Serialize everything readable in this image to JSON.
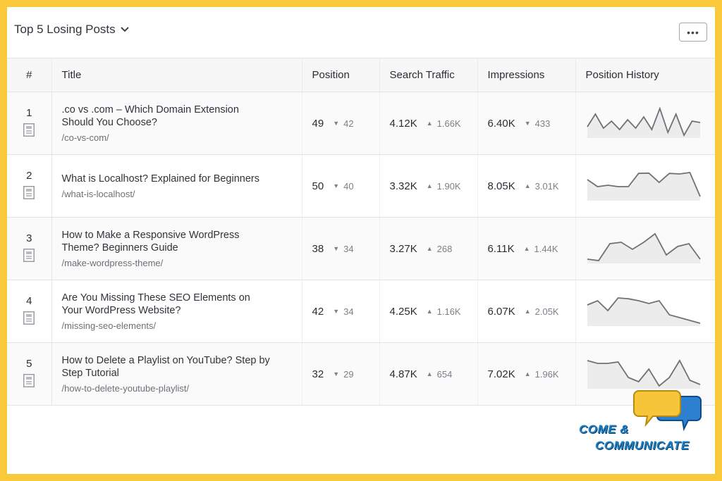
{
  "header": {
    "title": "Top 5 Losing Posts",
    "more_label": "•••"
  },
  "columns": {
    "num": "#",
    "title": "Title",
    "position": "Position",
    "traffic": "Search Traffic",
    "impressions": "Impressions",
    "history": "Position History"
  },
  "rows": [
    {
      "num": "1",
      "title": ".co vs .com – Which Domain Extension Should You Choose?",
      "url": "/co-vs-com/",
      "position": "49",
      "position_dir": "▼",
      "position_delta": "42",
      "traffic": "4.12K",
      "traffic_dir": "▲",
      "traffic_delta": "1.66K",
      "impressions": "6.40K",
      "impressions_dir": "▼",
      "impressions_delta": "433",
      "history": [
        0.35,
        0.8,
        0.3,
        0.55,
        0.25,
        0.6,
        0.3,
        0.7,
        0.25,
        1.0,
        0.15,
        0.8,
        0.05,
        0.55,
        0.5
      ]
    },
    {
      "num": "2",
      "title": "What is Localhost? Explained for Beginners",
      "url": "/what-is-localhost/",
      "position": "50",
      "position_dir": "▼",
      "position_delta": "40",
      "traffic": "3.32K",
      "traffic_dir": "▲",
      "traffic_delta": "1.90K",
      "impressions": "8.05K",
      "impressions_dir": "▲",
      "impressions_delta": "3.01K",
      "history": [
        0.7,
        0.45,
        0.5,
        0.45,
        0.45,
        0.92,
        0.93,
        0.6,
        0.92,
        0.9,
        0.95,
        0.1
      ]
    },
    {
      "num": "3",
      "title": "How to Make a Responsive WordPress Theme? Beginners Guide",
      "url": "/make-wordpress-theme/",
      "position": "38",
      "position_dir": "▼",
      "position_delta": "34",
      "traffic": "3.27K",
      "traffic_dir": "▲",
      "traffic_delta": "268",
      "impressions": "6.11K",
      "impressions_dir": "▲",
      "impressions_delta": "1.44K",
      "history": [
        0.1,
        0.05,
        0.65,
        0.7,
        0.45,
        0.7,
        1.0,
        0.25,
        0.55,
        0.65,
        0.1
      ]
    },
    {
      "num": "4",
      "title": "Are You Missing These SEO Elements on Your WordPress Website?",
      "url": "/missing-seo-elements/",
      "position": "42",
      "position_dir": "▼",
      "position_delta": "34",
      "traffic": "4.25K",
      "traffic_dir": "▲",
      "traffic_delta": "1.16K",
      "impressions": "6.07K",
      "impressions_dir": "▲",
      "impressions_delta": "2.05K",
      "history": [
        0.7,
        0.85,
        0.5,
        0.95,
        0.92,
        0.85,
        0.75,
        0.85,
        0.35,
        0.25,
        0.15,
        0.05
      ]
    },
    {
      "num": "5",
      "title": "How to Delete a Playlist on YouTube? Step by Step Tutorial",
      "url": "/how-to-delete-youtube-playlist/",
      "position": "32",
      "position_dir": "▼",
      "position_delta": "29",
      "traffic": "4.87K",
      "traffic_dir": "▲",
      "traffic_delta": "654",
      "impressions": "7.02K",
      "impressions_dir": "▲",
      "impressions_delta": "1.96K",
      "history": [
        0.95,
        0.85,
        0.85,
        0.9,
        0.35,
        0.2,
        0.65,
        0.05,
        0.35,
        0.95,
        0.25,
        0.1
      ]
    }
  ],
  "logo": {
    "line1": "COME &",
    "line2": "COMMUNICATE"
  },
  "colors": {
    "border": "#f9c93a",
    "spark_line": "#6e7177",
    "spark_fill": "#ececed"
  }
}
